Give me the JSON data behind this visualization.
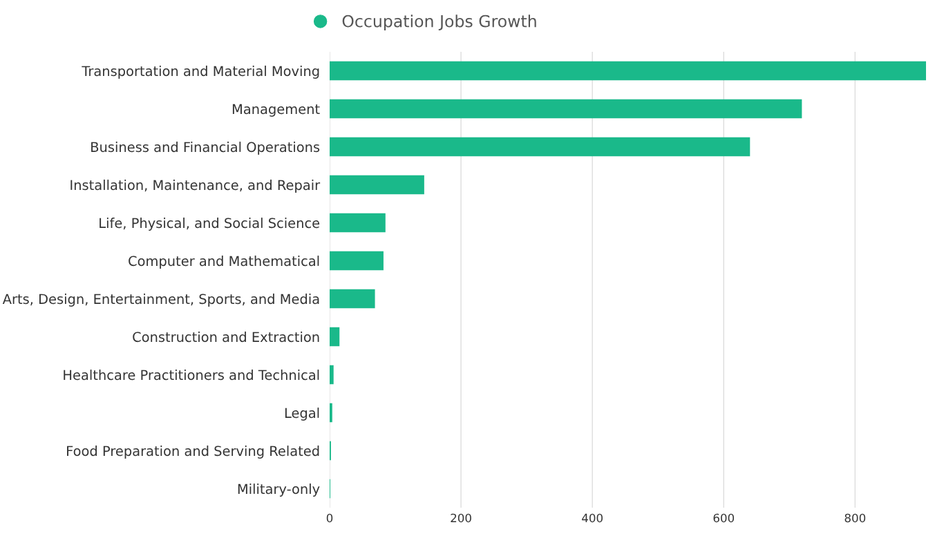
{
  "chart_data": {
    "type": "bar",
    "orientation": "horizontal",
    "categories": [
      "Transportation and Material Moving",
      "Management",
      "Business and Financial Operations",
      "Installation, Maintenance, and Repair",
      "Life, Physical, and Social Science",
      "Computer and Mathematical",
      "Arts, Design, Entertainment, Sports, and Media",
      "Construction and Extraction",
      "Healthcare Practitioners and Technical",
      "Legal",
      "Food Preparation and Serving Related",
      "Military-only"
    ],
    "series": [
      {
        "name": "Occupation Jobs Growth",
        "color": "#1ab98a",
        "values": [
          908,
          719,
          640,
          144,
          85,
          82,
          69,
          15,
          6,
          4,
          2,
          1
        ]
      }
    ],
    "xlim": [
      0,
      908
    ],
    "xticks": [
      0,
      200,
      400,
      600,
      800
    ],
    "grid": "x",
    "legend": "top"
  }
}
